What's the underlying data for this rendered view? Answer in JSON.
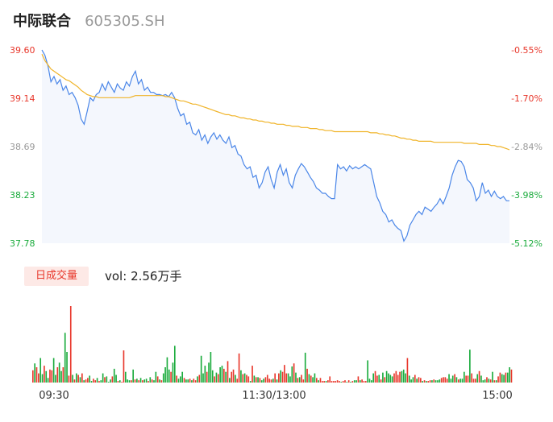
{
  "header": {
    "name": "中际联合",
    "code": "605305.SH"
  },
  "volume_header": {
    "tag": "日成交量",
    "vol_prefix": "vol:",
    "vol_value": "2.56万手"
  },
  "colors": {
    "up": "#e8372b",
    "down": "#1aab3c",
    "neutral": "#999999",
    "price_line": "#4a86e8",
    "avg_line": "#f0b429",
    "area_fill": "#f4f7fd"
  },
  "chart_data": [
    {
      "type": "line",
      "title": "",
      "y_ticks": [
        "39.60",
        "39.14",
        "38.69",
        "38.23",
        "37.78"
      ],
      "pct_ticks": [
        "-0.55%",
        "-1.70%",
        "-2.84%",
        "-3.98%",
        "-5.12%"
      ],
      "ylim": [
        37.78,
        39.6
      ],
      "x_ticks": [
        "09:30",
        "11:30/13:00",
        "15:00"
      ],
      "series": [
        {
          "role": "price",
          "values": [
            39.6,
            39.55,
            39.45,
            39.3,
            39.35,
            39.28,
            39.32,
            39.22,
            39.26,
            39.18,
            39.2,
            39.15,
            39.08,
            38.95,
            38.9,
            39.02,
            39.15,
            39.12,
            39.18,
            39.2,
            39.28,
            39.22,
            39.3,
            39.25,
            39.2,
            39.28,
            39.24,
            39.22,
            39.3,
            39.26,
            39.35,
            39.4,
            39.28,
            39.32,
            39.22,
            39.25,
            39.2,
            39.2,
            39.18,
            39.18,
            39.17,
            39.18,
            39.16,
            39.2,
            39.15,
            39.05,
            38.98,
            39.0,
            38.9,
            38.92,
            38.82,
            38.8,
            38.85,
            38.75,
            38.8,
            38.72,
            38.78,
            38.82,
            38.76,
            38.8,
            38.75,
            38.72,
            38.78,
            38.68,
            38.7,
            38.62,
            38.6,
            38.52,
            38.48,
            38.5,
            38.4,
            38.42,
            38.3,
            38.35,
            38.45,
            38.5,
            38.38,
            38.3,
            38.45,
            38.52,
            38.42,
            38.48,
            38.35,
            38.3,
            38.42,
            38.48,
            38.53,
            38.5,
            38.45,
            38.4,
            38.36,
            38.3,
            38.28,
            38.25,
            38.25,
            38.22,
            38.2,
            38.2,
            38.52,
            38.48,
            38.5,
            38.46,
            38.51,
            38.48,
            38.5,
            38.48,
            38.5,
            38.52,
            38.5,
            38.48,
            38.35,
            38.22,
            38.16,
            38.08,
            38.05,
            37.98,
            38.0,
            37.95,
            37.92,
            37.9,
            37.8,
            37.85,
            37.95,
            38.0,
            38.05,
            38.08,
            38.05,
            38.12,
            38.1,
            38.08,
            38.12,
            38.15,
            38.2,
            38.15,
            38.22,
            38.3,
            38.42,
            38.5,
            38.56,
            38.55,
            38.5,
            38.38,
            38.35,
            38.3,
            38.18,
            38.22,
            38.35,
            38.25,
            38.28,
            38.22,
            38.27,
            38.22,
            38.2,
            38.22,
            38.18,
            38.18
          ],
          "avg_values": [
            39.56,
            39.5,
            39.46,
            39.42,
            39.4,
            39.38,
            39.36,
            39.34,
            39.32,
            39.31,
            39.29,
            39.27,
            39.25,
            39.22,
            39.2,
            39.18,
            39.17,
            39.16,
            39.16,
            39.15,
            39.15,
            39.15,
            39.15,
            39.15,
            39.15,
            39.15,
            39.15,
            39.15,
            39.15,
            39.15,
            39.16,
            39.17,
            39.17,
            39.17,
            39.17,
            39.17,
            39.17,
            39.17,
            39.17,
            39.17,
            39.17,
            39.16,
            39.16,
            39.15,
            39.14,
            39.13,
            39.12,
            39.12,
            39.11,
            39.1,
            39.09,
            39.09,
            39.08,
            39.07,
            39.06,
            39.05,
            39.04,
            39.03,
            39.02,
            39.01,
            39.0,
            38.99,
            38.99,
            38.98,
            38.98,
            38.97,
            38.96,
            38.96,
            38.95,
            38.95,
            38.94,
            38.94,
            38.93,
            38.93,
            38.92,
            38.92,
            38.91,
            38.91,
            38.9,
            38.9,
            38.9,
            38.89,
            38.89,
            38.88,
            38.88,
            38.88,
            38.87,
            38.87,
            38.87,
            38.86,
            38.86,
            38.86,
            38.85,
            38.85,
            38.84,
            38.84,
            38.84,
            38.83,
            38.83,
            38.83,
            38.83,
            38.83,
            38.83,
            38.83,
            38.83,
            38.83,
            38.83,
            38.83,
            38.83,
            38.82,
            38.82,
            38.82,
            38.81,
            38.81,
            38.8,
            38.8,
            38.79,
            38.79,
            38.78,
            38.77,
            38.77,
            38.76,
            38.76,
            38.75,
            38.75,
            38.74,
            38.74,
            38.74,
            38.74,
            38.74,
            38.73,
            38.73,
            38.73,
            38.73,
            38.73,
            38.73,
            38.73,
            38.73,
            38.73,
            38.73,
            38.72,
            38.72,
            38.72,
            38.72,
            38.72,
            38.71,
            38.71,
            38.71,
            38.71,
            38.7,
            38.7,
            38.69,
            38.69,
            38.68,
            38.67,
            38.66
          ]
        }
      ]
    },
    {
      "type": "bar",
      "title": "",
      "ylim": [
        0,
        100
      ],
      "volumes": [
        16,
        25,
        20,
        12,
        32,
        11,
        22,
        15,
        6,
        17,
        16,
        32,
        10,
        20,
        26,
        15,
        20,
        65,
        40,
        9,
        100,
        10,
        4,
        12,
        10,
        7,
        12,
        3,
        4,
        6,
        9,
        2,
        5,
        3,
        6,
        2,
        3,
        12,
        7,
        8,
        1,
        4,
        8,
        18,
        10,
        2,
        3,
        1,
        42,
        14,
        4,
        3,
        3,
        17,
        4,
        5,
        3,
        6,
        3,
        4,
        5,
        2,
        7,
        4,
        3,
        14,
        8,
        4,
        3,
        12,
        20,
        33,
        17,
        14,
        26,
        48,
        9,
        5,
        8,
        14,
        6,
        4,
        4,
        5,
        3,
        5,
        3,
        8,
        10,
        35,
        12,
        22,
        14,
        26,
        40,
        16,
        8,
        13,
        11,
        20,
        22,
        18,
        14,
        28,
        6,
        14,
        17,
        10,
        5,
        38,
        16,
        11,
        12,
        10,
        8,
        2,
        22,
        9,
        7,
        7,
        6,
        3,
        5,
        7,
        10,
        5,
        4,
        5,
        12,
        4,
        12,
        16,
        14,
        23,
        12,
        12,
        8,
        21,
        25,
        13,
        6,
        7,
        10,
        4,
        39,
        18,
        11,
        9,
        7,
        12,
        6,
        3,
        6,
        2,
        2,
        2,
        3,
        8,
        2,
        2,
        2,
        3,
        2,
        1,
        2,
        3,
        1,
        3,
        1,
        2,
        3,
        3,
        8,
        3,
        4,
        2,
        2,
        29,
        5,
        3,
        12,
        15,
        9,
        10,
        4,
        13,
        7,
        15,
        12,
        10,
        8,
        12,
        15,
        10,
        14,
        15,
        17,
        12,
        32,
        9,
        4,
        7,
        10,
        5,
        7,
        6,
        2,
        3,
        2,
        2,
        3,
        3,
        4,
        3,
        3,
        4,
        6,
        7,
        7,
        5,
        11,
        5,
        9,
        11,
        7,
        4,
        5,
        5,
        14,
        9,
        9,
        43,
        12,
        5,
        5,
        11,
        15,
        9,
        3,
        4,
        7,
        5,
        4,
        14,
        3,
        3,
        8,
        13,
        11,
        10,
        13,
        13,
        20,
        17
      ],
      "directions": [
        "u",
        "d",
        "u",
        "u",
        "d",
        "d",
        "u",
        "d",
        "d",
        "u",
        "u",
        "d",
        "d",
        "u",
        "d",
        "d",
        "u",
        "d",
        "d",
        "u",
        "u",
        "d",
        "u",
        "d",
        "u",
        "d",
        "u",
        "d",
        "u",
        "u",
        "d",
        "d",
        "u",
        "u",
        "d",
        "u",
        "d",
        "d",
        "u",
        "d",
        "d",
        "d",
        "u",
        "d",
        "d",
        "u",
        "d",
        "u",
        "u",
        "d",
        "d",
        "d",
        "u",
        "d",
        "u",
        "d",
        "u",
        "d",
        "u",
        "d",
        "d",
        "u",
        "d",
        "u",
        "d",
        "d",
        "u",
        "d",
        "u",
        "d",
        "d",
        "d",
        "d",
        "u",
        "d",
        "d",
        "u",
        "d",
        "d",
        "d",
        "u",
        "d",
        "d",
        "u",
        "d",
        "u",
        "u",
        "d",
        "u",
        "d",
        "d",
        "d",
        "u",
        "d",
        "d",
        "d",
        "u",
        "d",
        "u",
        "d",
        "d",
        "u",
        "d",
        "u",
        "d",
        "u",
        "u",
        "d",
        "u",
        "u",
        "d",
        "u",
        "d",
        "u",
        "u",
        "d",
        "u",
        "d",
        "u",
        "d",
        "u",
        "d",
        "d",
        "u",
        "u",
        "u",
        "u",
        "d",
        "u",
        "d",
        "u",
        "d",
        "u",
        "u",
        "u",
        "d",
        "d",
        "d",
        "u",
        "d",
        "u",
        "d",
        "u",
        "u",
        "d",
        "u",
        "d",
        "u",
        "d",
        "d",
        "u",
        "d",
        "u",
        "u",
        "u",
        "d",
        "u",
        "u",
        "u",
        "u",
        "u",
        "u",
        "u",
        "d",
        "u",
        "u",
        "d",
        "u",
        "d",
        "u",
        "d",
        "d",
        "u",
        "d",
        "u",
        "u",
        "u",
        "d",
        "d",
        "d",
        "d",
        "u",
        "u",
        "d",
        "u",
        "d",
        "u",
        "d",
        "d",
        "d",
        "d",
        "u",
        "u",
        "u",
        "u",
        "d",
        "d",
        "d",
        "u",
        "d",
        "d",
        "d",
        "u",
        "d",
        "u",
        "u",
        "d",
        "u",
        "d",
        "u",
        "u",
        "d",
        "u",
        "d",
        "d",
        "d",
        "u",
        "u",
        "u",
        "u",
        "d",
        "d",
        "d",
        "u",
        "d",
        "u",
        "d",
        "d",
        "d",
        "u",
        "u",
        "d",
        "u",
        "u",
        "u",
        "d",
        "u",
        "d",
        "d",
        "d",
        "u",
        "d",
        "u",
        "d",
        "u",
        "d",
        "u",
        "u",
        "d",
        "d",
        "u",
        "d",
        "d",
        "u"
      ]
    }
  ]
}
